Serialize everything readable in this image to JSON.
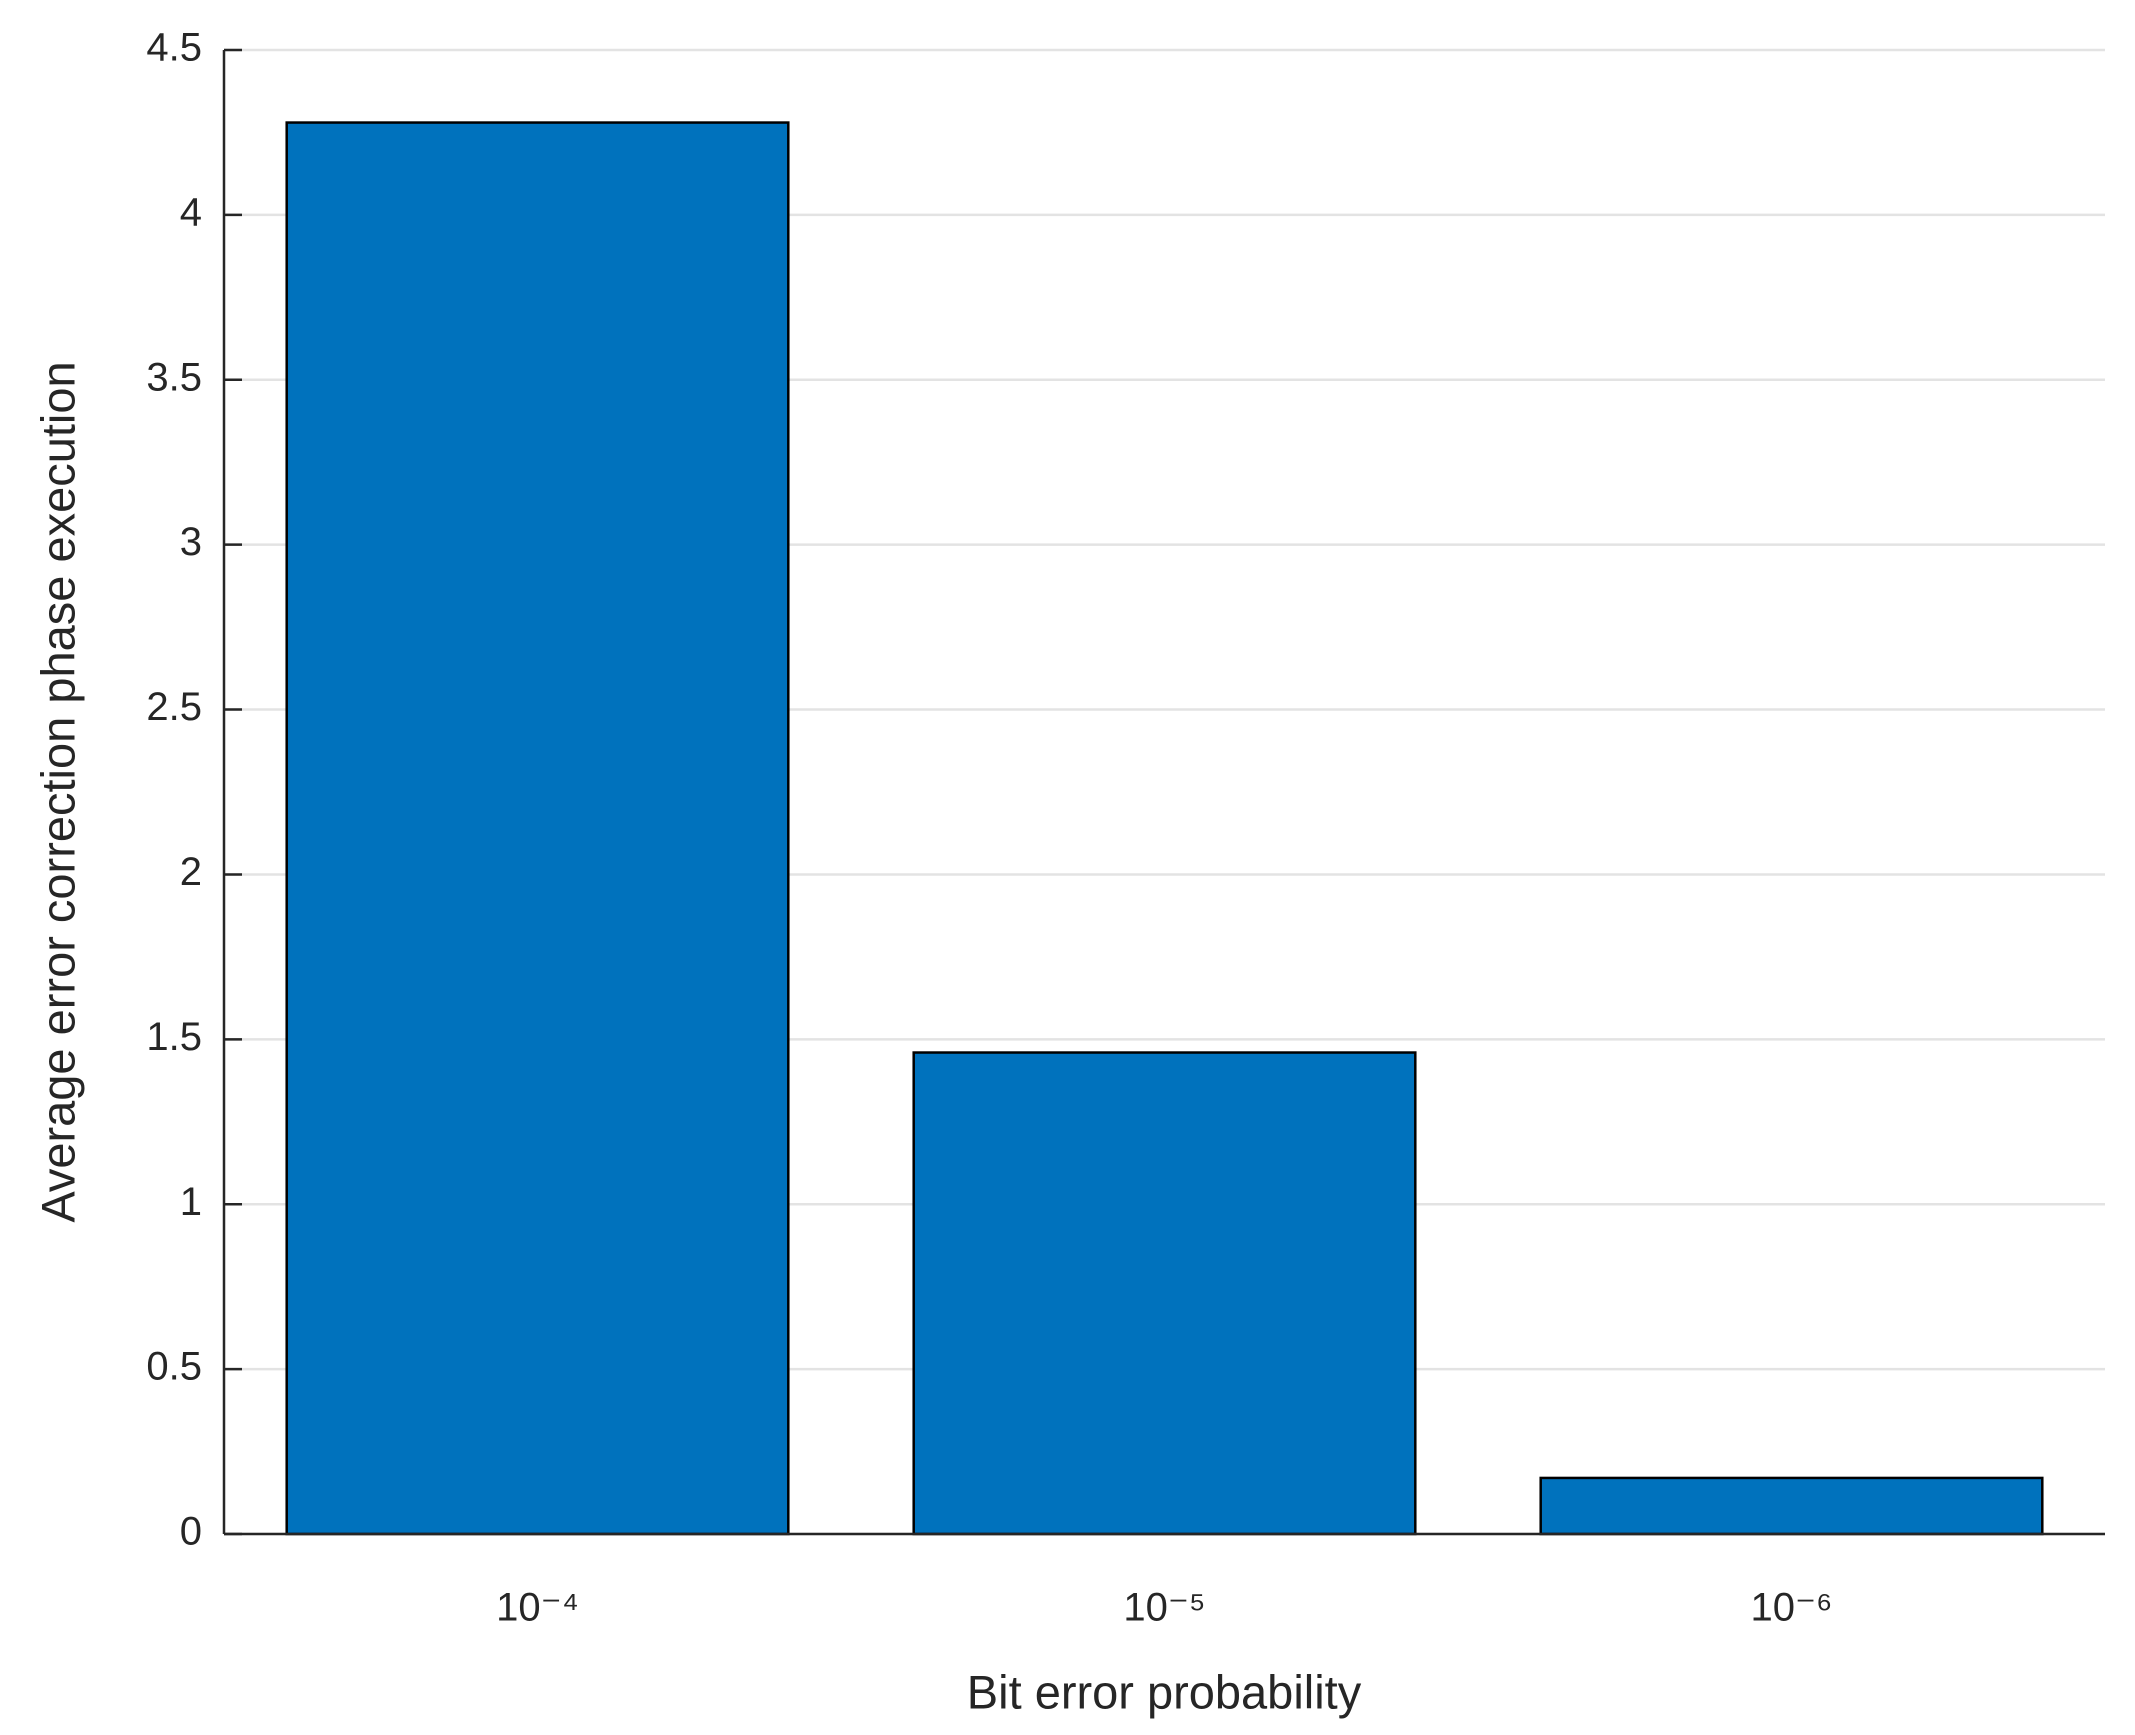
{
  "chart_data": {
    "type": "bar",
    "x_label": "Bit error probability",
    "y_label": "Average error correction phase execution",
    "categories": [
      "10⁻⁴",
      "10⁻⁵",
      "10⁻⁶"
    ],
    "values": [
      4.28,
      1.46,
      0.17
    ],
    "color": "#0072bd",
    "ylim": [
      0,
      4.5
    ],
    "yticks": [
      0,
      0.5,
      1,
      1.5,
      2,
      2.5,
      3,
      3.5,
      4,
      4.5
    ],
    "grid": true
  }
}
